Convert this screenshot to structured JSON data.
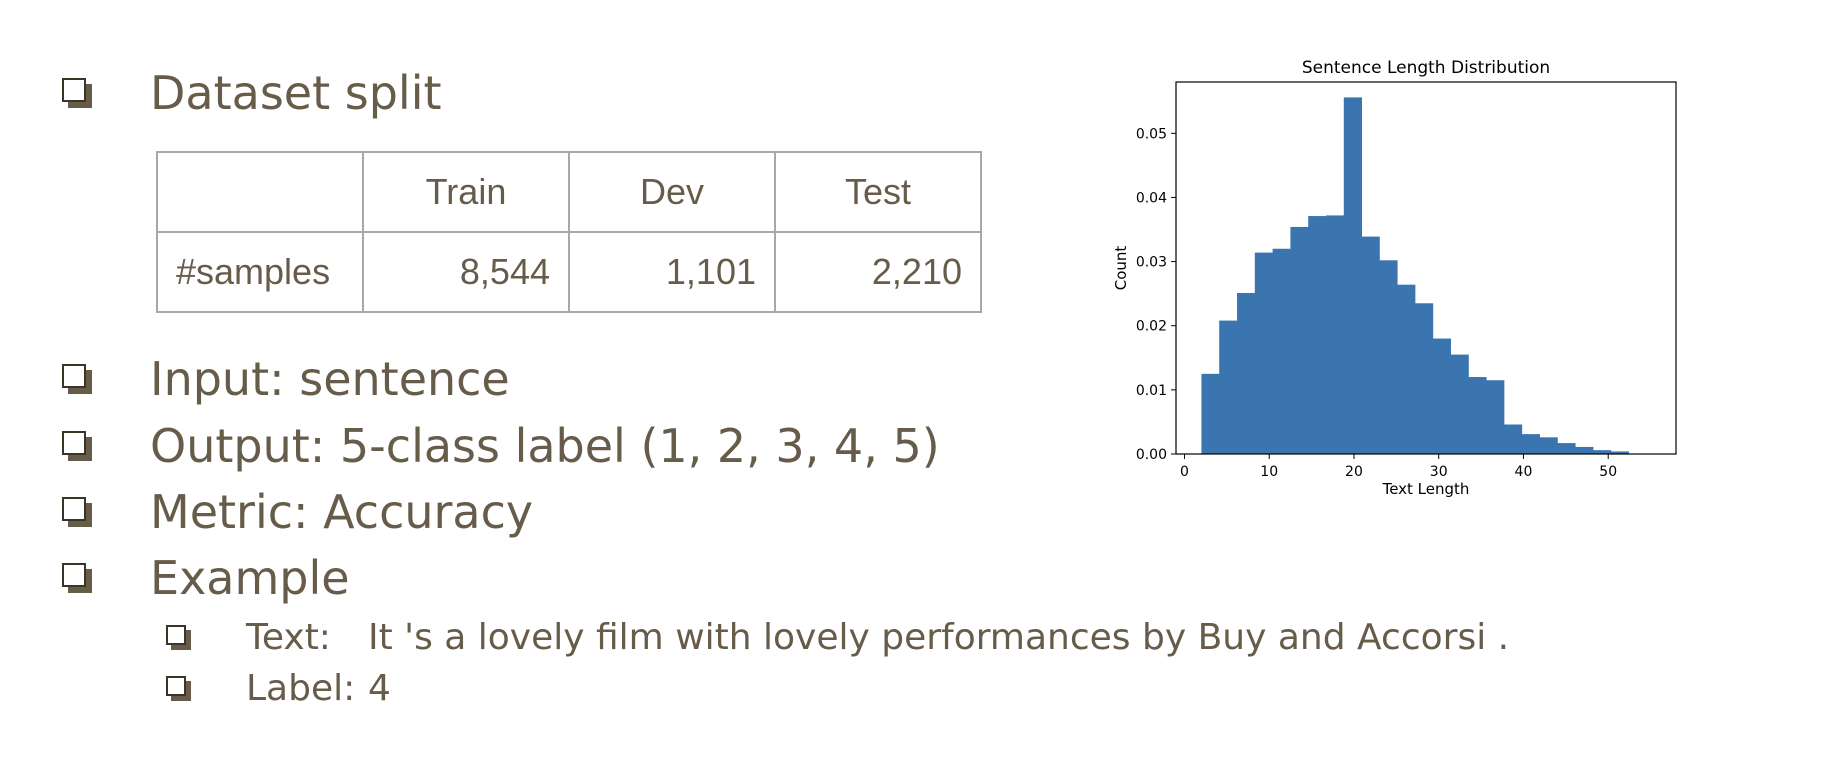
{
  "bullets": {
    "dataset_split": "Dataset split",
    "input": "Input: sentence",
    "output": "Output: 5-class label (1, 2, 3, 4, 5)",
    "metric": "Metric: Accuracy",
    "example": "Example"
  },
  "example": {
    "text_label": "Text:",
    "text_value": "It 's a lovely film with lovely performances by Buy and Accorsi .",
    "label_label": "Label:",
    "label_value": "4"
  },
  "table": {
    "headers": [
      "",
      "Train",
      "Dev",
      "Test"
    ],
    "row_label": "#samples",
    "values": [
      "8,544",
      "1,101",
      "2,210"
    ]
  },
  "chart_data": {
    "type": "bar",
    "title": "Sentence Length Distribution",
    "xlabel": "Text Length",
    "ylabel": "Count",
    "xlim": [
      -1,
      58
    ],
    "ylim": [
      0,
      0.058
    ],
    "xticks": [
      0,
      10,
      20,
      30,
      40,
      50
    ],
    "yticks": [
      0.0,
      0.01,
      0.02,
      0.03,
      0.04,
      0.05
    ],
    "ytick_labels": [
      "0.00",
      "0.01",
      "0.02",
      "0.03",
      "0.04",
      "0.05"
    ],
    "bin_edges": [
      2,
      4.1,
      6.2,
      8.3,
      10.4,
      12.5,
      14.6,
      16.7,
      18.8,
      20.9,
      23,
      25.1,
      27.2,
      29.3,
      31.4,
      33.5,
      35.6,
      37.7,
      39.8,
      41.9,
      44,
      46.1,
      48.2,
      50.3,
      52.4
    ],
    "values": [
      0.0125,
      0.0208,
      0.0251,
      0.0314,
      0.032,
      0.0354,
      0.0371,
      0.0372,
      0.0556,
      0.0339,
      0.0302,
      0.0264,
      0.0235,
      0.018,
      0.0155,
      0.012,
      0.0115,
      0.0046,
      0.0031,
      0.0026,
      0.0017,
      0.0011,
      0.0006,
      0.0004
    ],
    "bar_color": "#3a75b0",
    "grid": false
  }
}
